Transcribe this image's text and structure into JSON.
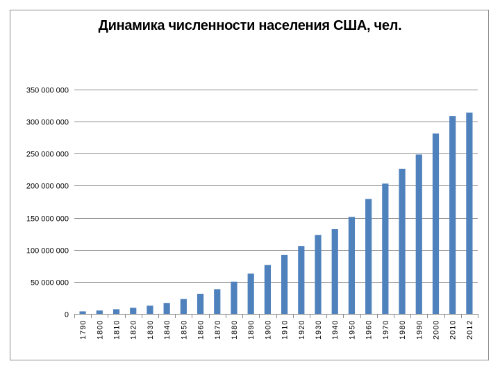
{
  "chart_data": {
    "type": "bar",
    "title": "Динамика численности населения США, чел.",
    "xlabel": "",
    "ylabel": "",
    "ylim": [
      0,
      350000000
    ],
    "y_ticks": [
      {
        "value": 0,
        "label": "0"
      },
      {
        "value": 50000000,
        "label": "50 000 000"
      },
      {
        "value": 100000000,
        "label": "100 000 000"
      },
      {
        "value": 150000000,
        "label": "150 000 000"
      },
      {
        "value": 200000000,
        "label": "200 000 000"
      },
      {
        "value": 250000000,
        "label": "250 000 000"
      },
      {
        "value": 300000000,
        "label": "300 000 000"
      },
      {
        "value": 350000000,
        "label": "350 000 000"
      }
    ],
    "grid": true,
    "legend": "none",
    "bar_color": "#4f81bd",
    "categories": [
      "1790",
      "1800",
      "1810",
      "1820",
      "1830",
      "1840",
      "1850",
      "1860",
      "1870",
      "1880",
      "1890",
      "1900",
      "1910",
      "1920",
      "1930",
      "1940",
      "1950",
      "1960",
      "1970",
      "1980",
      "1990",
      "2000",
      "2010",
      "2012"
    ],
    "values": [
      3900000,
      5300000,
      7200000,
      9600000,
      12900000,
      17100000,
      23200000,
      31400000,
      38600000,
      50200000,
      63000000,
      76200000,
      92200000,
      106000000,
      123200000,
      132200000,
      151300000,
      179300000,
      203300000,
      226500000,
      248700000,
      281400000,
      308700000,
      314000000
    ]
  }
}
